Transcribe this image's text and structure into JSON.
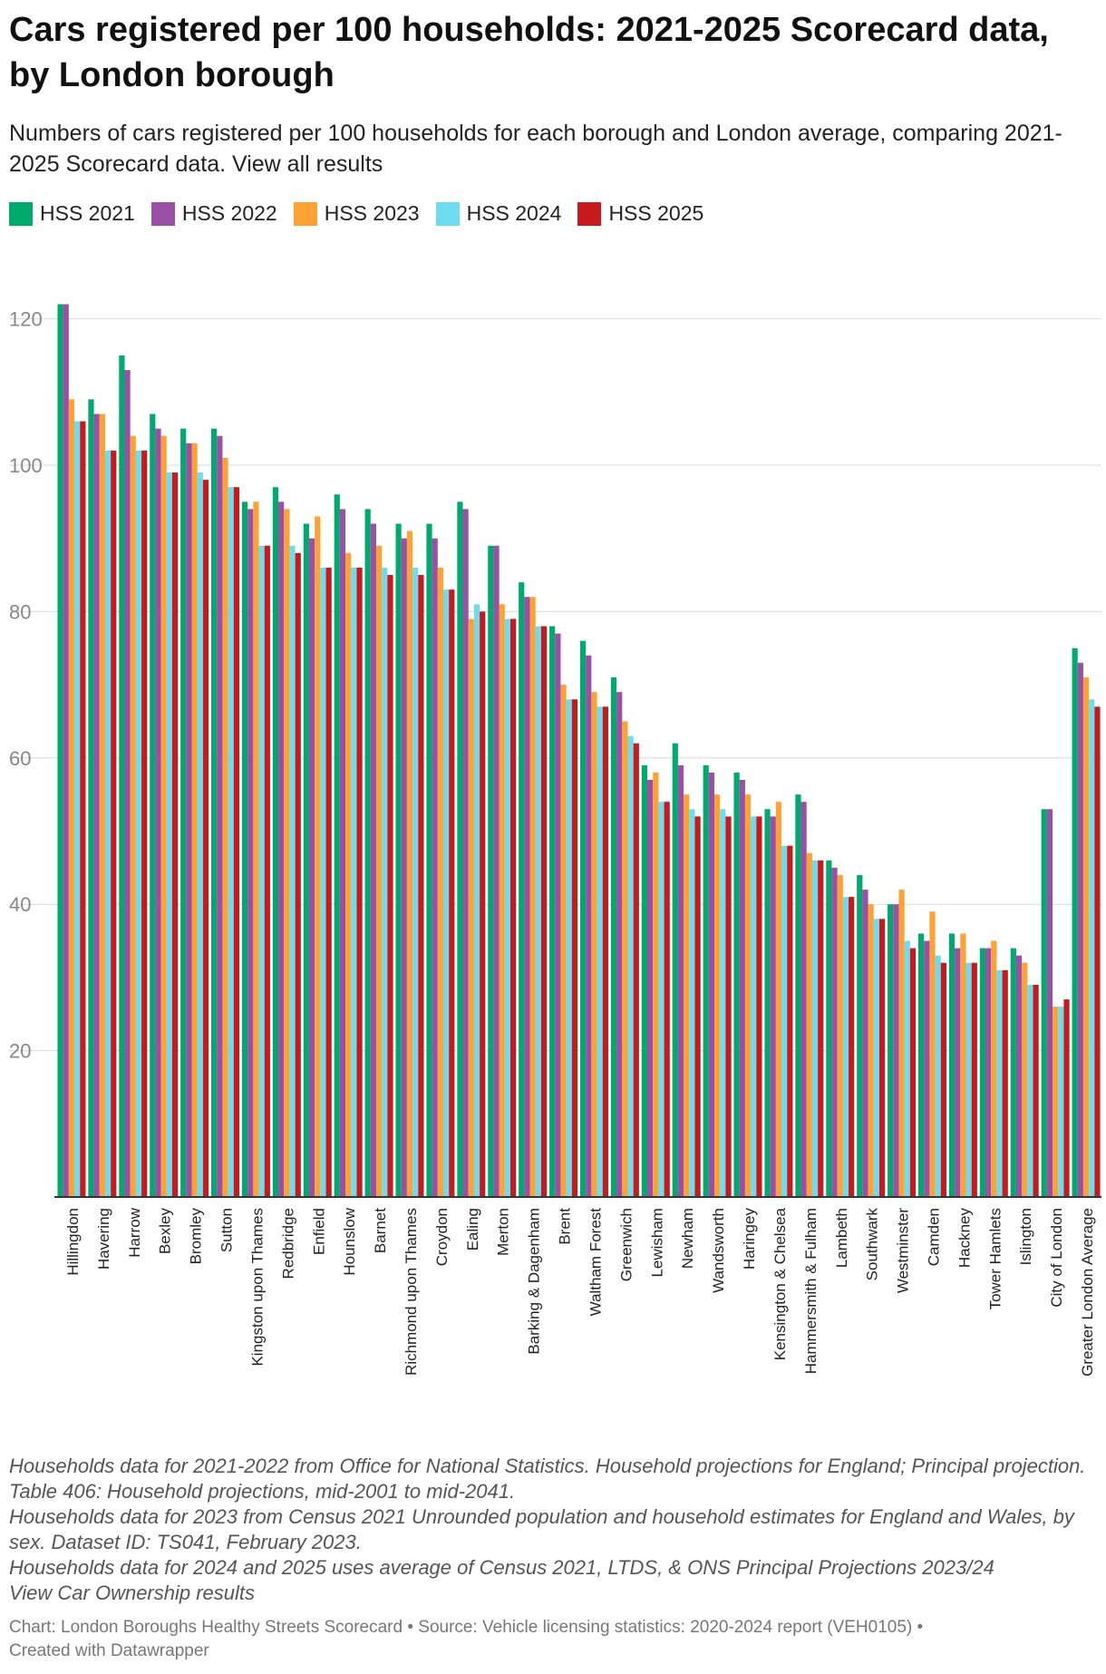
{
  "title": "Cars registered per 100 households: 2021-2025 Scorecard data, by London borough",
  "subtitle": "Numbers of cars registered per 100 households for each borough and London average, comparing 2021-2025 Scorecard data. View all results",
  "notes": [
    "Households data for 2021-2022 from Office for National Statistics. Household projections for England; Principal projection. Table 406: Household projections, mid-2001 to mid-2041.",
    "Households data for 2023 from Census 2021 Unrounded population and household estimates for England and Wales, by sex. Dataset ID: TS041, February 2023.",
    "Households data for 2024 and 2025 uses average of Census 2021, LTDS, & ONS Principal Projections 2023/24",
    "View Car Ownership results"
  ],
  "footer": {
    "source_line": "Chart: London Boroughs Healthy Streets Scorecard • Source: Vehicle licensing statistics: 2020-2024 report (VEH0105) •",
    "credit_line": "Created with Datawrapper"
  },
  "chart_data": {
    "type": "bar",
    "title": "Cars registered per 100 households: 2021-2025 Scorecard data, by London borough",
    "ylim": [
      0,
      122
    ],
    "yticks": [
      20,
      40,
      60,
      80,
      100,
      120
    ],
    "grid": true,
    "legend_position": "top-left",
    "categories": [
      "Hillingdon",
      "Havering",
      "Harrow",
      "Bexley",
      "Bromley",
      "Sutton",
      "Kingston upon Thames",
      "Redbridge",
      "Enfield",
      "Hounslow",
      "Barnet",
      "Richmond upon Thames",
      "Croydon",
      "Ealing",
      "Merton",
      "Barking & Dagenham",
      "Brent",
      "Waltham Forest",
      "Greenwich",
      "Lewisham",
      "Newham",
      "Wandsworth",
      "Haringey",
      "Kensington & Chelsea",
      "Hammersmith & Fulham",
      "Lambeth",
      "Southwark",
      "Westminster",
      "Camden",
      "Hackney",
      "Tower Hamlets",
      "Islington",
      "City of London",
      "Greater London Average"
    ],
    "series": [
      {
        "name": "HSS 2021",
        "color": "#00a96e",
        "values": [
          122,
          109,
          115,
          107,
          105,
          105,
          95,
          97,
          92,
          96,
          94,
          92,
          92,
          95,
          89,
          84,
          78,
          76,
          71,
          59,
          62,
          59,
          58,
          53,
          55,
          46,
          44,
          40,
          36,
          36,
          34,
          34,
          53,
          75
        ]
      },
      {
        "name": "HSS 2022",
        "color": "#9b4fa6",
        "values": [
          122,
          107,
          113,
          105,
          103,
          104,
          94,
          95,
          90,
          94,
          92,
          90,
          90,
          94,
          89,
          82,
          77,
          74,
          69,
          57,
          59,
          58,
          57,
          52,
          54,
          45,
          42,
          40,
          35,
          34,
          34,
          33,
          53,
          73
        ]
      },
      {
        "name": "HSS 2023",
        "color": "#ffa133",
        "values": [
          109,
          107,
          104,
          104,
          103,
          101,
          95,
          94,
          93,
          88,
          89,
          91,
          86,
          79,
          81,
          82,
          70,
          69,
          65,
          58,
          55,
          55,
          55,
          54,
          47,
          44,
          40,
          42,
          39,
          36,
          35,
          32,
          26,
          71
        ]
      },
      {
        "name": "HSS 2024",
        "color": "#6ddcef",
        "values": [
          106,
          102,
          102,
          99,
          99,
          97,
          89,
          89,
          86,
          86,
          86,
          86,
          83,
          81,
          79,
          78,
          68,
          67,
          63,
          54,
          53,
          53,
          52,
          48,
          46,
          41,
          38,
          35,
          33,
          32,
          31,
          29,
          26,
          68
        ]
      },
      {
        "name": "HSS 2025",
        "color": "#c8191c",
        "values": [
          106,
          102,
          102,
          99,
          98,
          97,
          89,
          88,
          86,
          86,
          85,
          85,
          83,
          80,
          79,
          78,
          68,
          67,
          62,
          54,
          52,
          52,
          52,
          48,
          46,
          41,
          38,
          34,
          32,
          32,
          31,
          29,
          27,
          67
        ]
      }
    ]
  }
}
